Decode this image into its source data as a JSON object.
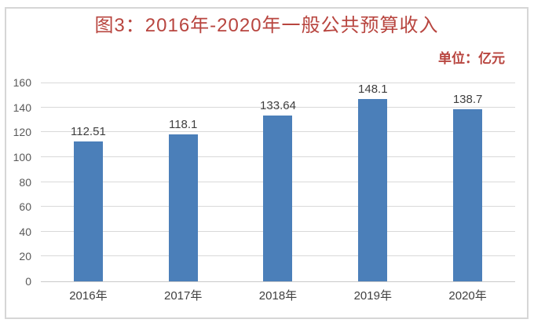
{
  "frame": {
    "background": "#ffffff",
    "border_color": "#d6d6d6"
  },
  "header": {
    "title": "图3：2016年-2020年一般公共预算收入",
    "unit_label": "单位：亿元"
  },
  "colors": {
    "title": "#b8453f",
    "unit_label": "#b8453f",
    "bar": "#4b7fb9",
    "gridline": "#d9d9d9",
    "baseline": "#c9c9c9",
    "y_axis_text": "#595959",
    "x_axis_text": "#404040",
    "value_label_text": "#3f3f3f"
  },
  "chart_data": {
    "type": "bar",
    "title": "图3：2016年-2020年一般公共预算收入",
    "unit": "单位：亿元",
    "categories": [
      "2016年",
      "2017年",
      "2018年",
      "2019年",
      "2020年"
    ],
    "values": [
      112.51,
      118.1,
      133.64,
      148.1,
      138.7
    ],
    "value_labels": [
      "112.51",
      "118.1",
      "133.64",
      "148.1",
      "138.7"
    ],
    "xlabel": "",
    "ylabel": "",
    "ylim": [
      0,
      160
    ],
    "yticks": [
      0,
      20,
      40,
      60,
      80,
      100,
      120,
      140,
      160
    ],
    "grid": true,
    "legend": false,
    "legend_position": "none"
  }
}
